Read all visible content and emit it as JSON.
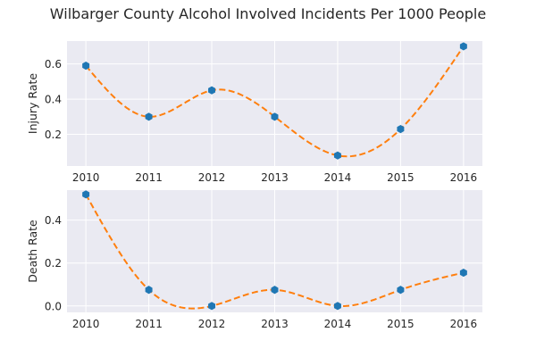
{
  "figure_title": "Wilbarger County Alcohol Involved Incidents Per 1000 People",
  "colors": {
    "background": "#eaeaf2",
    "grid": "#ffffff",
    "points": "#1f77b4",
    "fit_line": "#ff7f0e"
  },
  "chart_data": [
    {
      "type": "scatter",
      "title": "",
      "xlabel": "",
      "ylabel": "Injury Rate",
      "x": [
        2010,
        2011,
        2012,
        2013,
        2014,
        2015,
        2016
      ],
      "series": [
        {
          "values": [
            0.59,
            0.3,
            0.45,
            0.3,
            0.08,
            0.23,
            0.7
          ]
        }
      ],
      "fit_line": "dashed smooth curve through points",
      "xticks": [
        "2010",
        "2011",
        "2012",
        "2013",
        "2014",
        "2015",
        "2016"
      ],
      "yticks": [
        "0.2",
        "0.4",
        "0.6"
      ],
      "ylim": [
        0.02,
        0.73
      ],
      "grid": true
    },
    {
      "type": "scatter",
      "title": "",
      "xlabel": "",
      "ylabel": "Death Rate",
      "x": [
        2010,
        2011,
        2012,
        2013,
        2014,
        2015,
        2016
      ],
      "series": [
        {
          "values": [
            0.52,
            0.075,
            0.0,
            0.075,
            0.0,
            0.075,
            0.155
          ]
        }
      ],
      "fit_line": "dashed smooth curve through points",
      "xticks": [
        "2010",
        "2011",
        "2012",
        "2013",
        "2014",
        "2015",
        "2016"
      ],
      "yticks": [
        "0.0",
        "0.2",
        "0.4"
      ],
      "ylim": [
        -0.03,
        0.54
      ],
      "grid": true
    }
  ]
}
